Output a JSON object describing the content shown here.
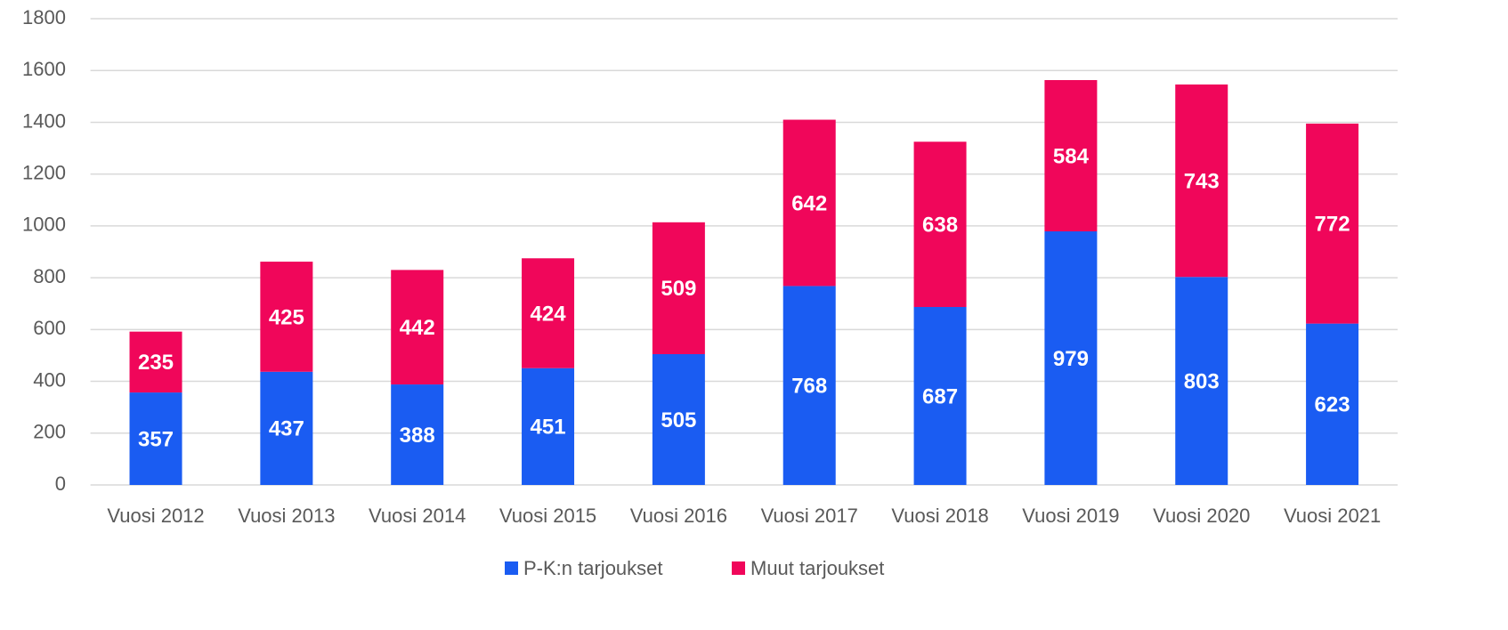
{
  "chart_data": {
    "type": "bar",
    "stacked": true,
    "categories": [
      "Vuosi 2012",
      "Vuosi 2013",
      "Vuosi 2014",
      "Vuosi 2015",
      "Vuosi 2016",
      "Vuosi 2017",
      "Vuosi 2018",
      "Vuosi 2019",
      "Vuosi 2020",
      "Vuosi 2021"
    ],
    "series": [
      {
        "name": "P-K:n tarjoukset",
        "color": "#1a5cf2",
        "values": [
          357,
          437,
          388,
          451,
          505,
          768,
          687,
          979,
          803,
          623
        ]
      },
      {
        "name": "Muut tarjoukset",
        "color": "#f0065a",
        "values": [
          235,
          425,
          442,
          424,
          509,
          642,
          638,
          584,
          743,
          772
        ]
      }
    ],
    "ylim": [
      0,
      1800
    ],
    "yticks": [
      0,
      200,
      400,
      600,
      800,
      1000,
      1200,
      1400,
      1600,
      1800
    ],
    "grid": true,
    "legend": "bottom"
  }
}
